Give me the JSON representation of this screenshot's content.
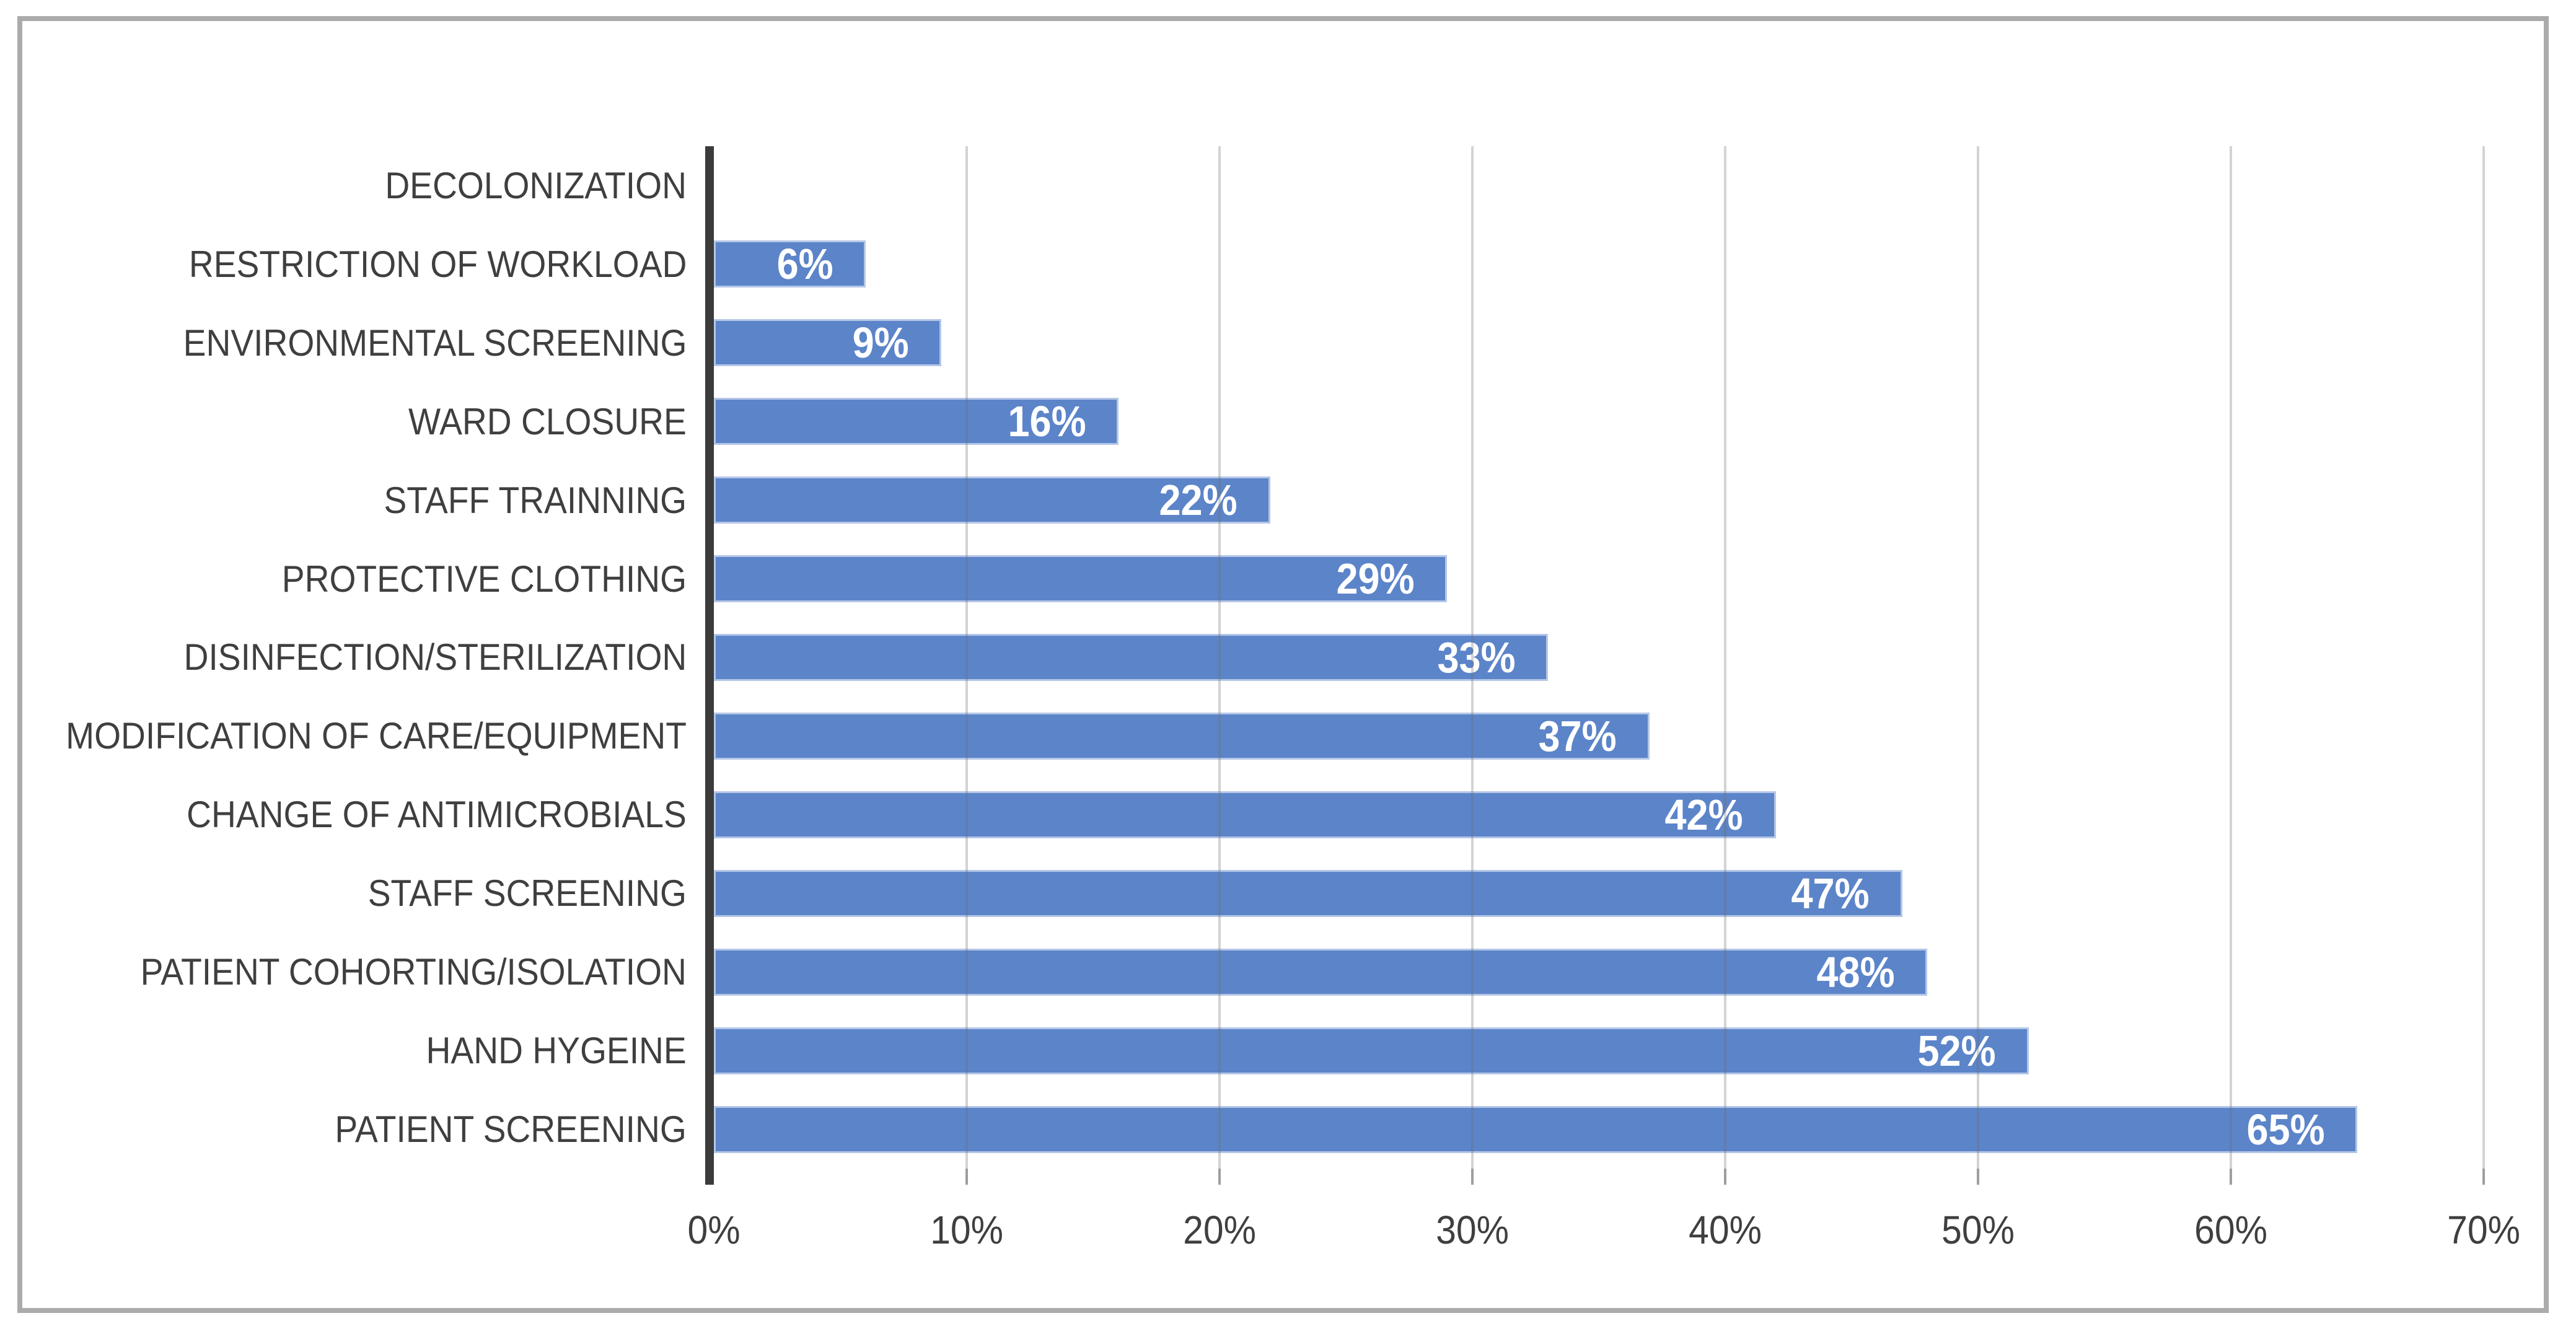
{
  "chart_data": {
    "type": "bar",
    "orientation": "horizontal",
    "title": "",
    "categories": [
      "DECOLONIZATION",
      "RESTRICTION OF WORKLOAD",
      "ENVIRONMENTAL SCREENING",
      "WARD CLOSURE",
      "STAFF TRAINNING",
      "PROTECTIVE CLOTHING",
      "DISINFECTION/STERILIZATION",
      "MODIFICATION OF CARE/EQUIPMENT",
      "CHANGE OF ANTIMICROBIALS",
      "STAFF SCREENING",
      "PATIENT COHORTING/ISOLATION",
      "HAND HYGEINE",
      "PATIENT SCREENING"
    ],
    "values": [
      0,
      6,
      9,
      16,
      22,
      29,
      33,
      37,
      42,
      47,
      48,
      52,
      65
    ],
    "data_labels": [
      "",
      "6%",
      "9%",
      "16%",
      "22%",
      "29%",
      "33%",
      "37%",
      "42%",
      "47%",
      "48%",
      "52%",
      "65%"
    ],
    "x_ticks": [
      "0%",
      "10%",
      "20%",
      "30%",
      "40%",
      "50%",
      "60%",
      "70%"
    ],
    "xlim": [
      0,
      70
    ],
    "x_tick_step": 10,
    "grid": "vertical-gridlines-on",
    "legend": "none",
    "colors": {
      "bar": "#5C84C9",
      "axis": "#3B3B3B",
      "gridline": "rgba(110,110,110,0.30)",
      "tick": "#9E9E9E",
      "label_text": "#3F3F3F",
      "data_label_text": "#FFFFFF",
      "frame_border": "#ABABAB",
      "background": "#FFFFFF"
    }
  }
}
